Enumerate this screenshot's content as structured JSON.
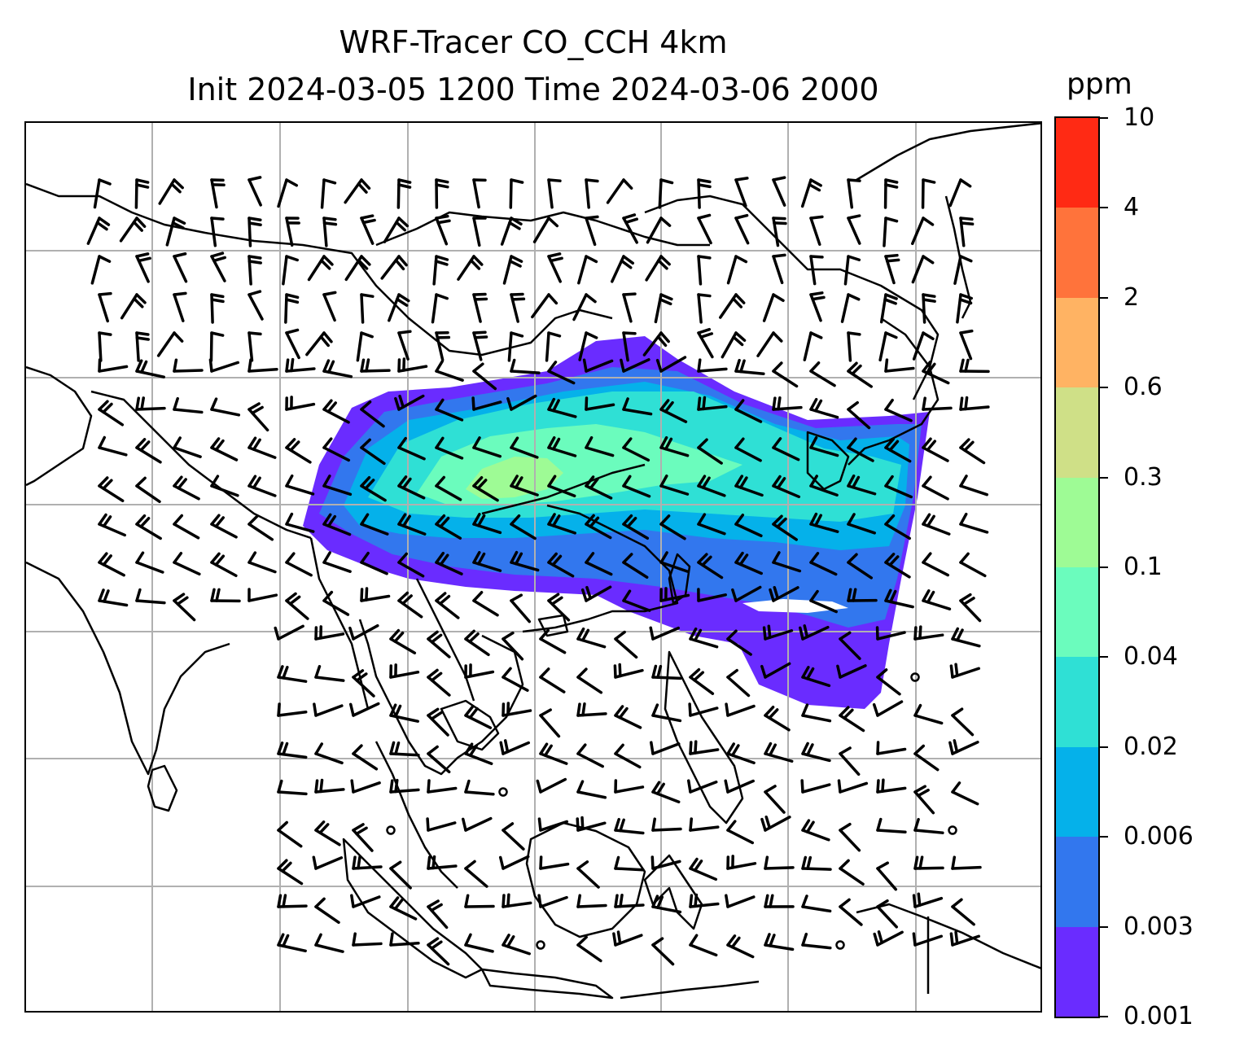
{
  "title": {
    "line1": "WRF-Tracer CO_CCH 4km",
    "line2": "Init 2024-03-05 1200 Time 2024-03-06 2000"
  },
  "colorbar": {
    "unit": "ppm",
    "levels": [
      "0.001",
      "0.003",
      "0.006",
      "0.02",
      "0.04",
      "0.1",
      "0.3",
      "0.6",
      "2",
      "4",
      "10"
    ],
    "colors": [
      "#6a2cff",
      "#3277ee",
      "#05b1ea",
      "#2fe0d5",
      "#6bfcbd",
      "#9efb95",
      "#cfe087",
      "#ffb363",
      "#ff733b",
      "#ff2a14"
    ]
  },
  "map": {
    "gridlines": true,
    "field": "CO_CCH tracer concentration, plume over southern China extending east over the western Pacific",
    "overlay": "wind barbs",
    "coastlines": true,
    "borders": true
  }
}
